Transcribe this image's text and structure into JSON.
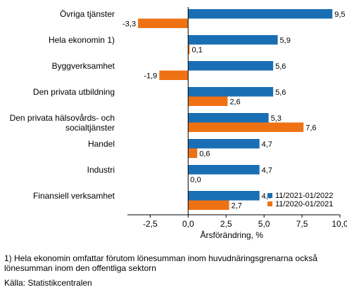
{
  "chart_data": {
    "type": "bar",
    "orientation": "horizontal",
    "categories": [
      [
        "Övriga tjänster"
      ],
      [
        "Hela ekonomin 1)"
      ],
      [
        "Byggverksamhet"
      ],
      [
        "Den privata utbildning"
      ],
      [
        "Den privata hälsovårds- och",
        "socialtjänster"
      ],
      [
        "Handel"
      ],
      [
        "Industri"
      ],
      [
        "Finansiell verksamhet"
      ]
    ],
    "series": [
      {
        "name": "11/2021-01/2022",
        "color": "#1a6fb4",
        "values": [
          9.5,
          5.9,
          5.6,
          5.6,
          5.3,
          4.7,
          4.7,
          4.7
        ],
        "labels": [
          "9,5",
          "5,9",
          "5,6",
          "5,6",
          "5,3",
          "4,7",
          "4,7",
          "4,7"
        ]
      },
      {
        "name": "11/2020-01/2021",
        "color": "#ee7214",
        "values": [
          -3.3,
          0.1,
          -1.9,
          2.6,
          7.6,
          0.6,
          0.0,
          2.7
        ],
        "labels": [
          "-3,3",
          "0,1",
          "-1,9",
          "2,6",
          "7,6",
          "0,6",
          "0,0",
          "2,7"
        ]
      }
    ],
    "xlabel": "Årsförändring, %",
    "xlim": [
      -4,
      10
    ],
    "xticks": [
      -2.5,
      0,
      2.5,
      5,
      7.5,
      10
    ],
    "xtick_labels": [
      "-2,5",
      "0,0",
      "2,5",
      "5,0",
      "7,5",
      "10,0"
    ],
    "grid": false,
    "legend_position": "bottom-right"
  },
  "footnote": {
    "line1": "1) Hela ekonomin omfattar förutom lönesumman inom huvudnäringsgrenarna också",
    "line2": "lönesumman inom den offentliga sektorn"
  },
  "source": "Källa: Statistikcentralen"
}
